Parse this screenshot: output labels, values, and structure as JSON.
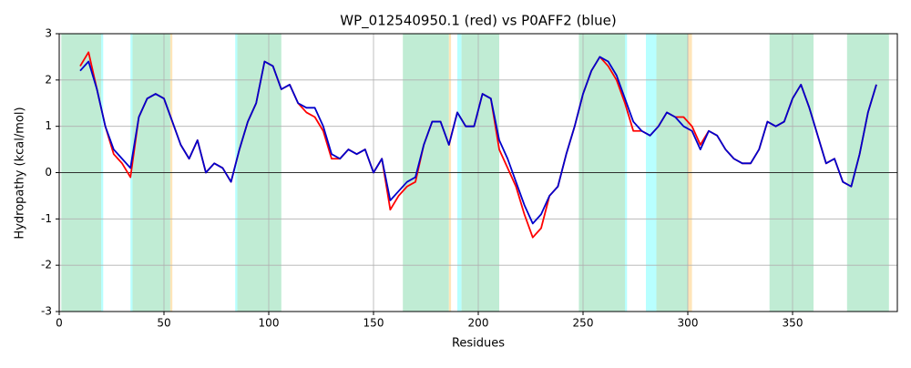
{
  "chart_data": {
    "type": "line",
    "title": "WP_012540950.1 (red) vs P0AFF2 (blue)",
    "x_label": "Residues",
    "y_label": "Hydropathy (kcal/mol)",
    "xlim": [
      0,
      400
    ],
    "ylim": [
      -3,
      3
    ],
    "xticks": [
      0,
      50,
      100,
      150,
      200,
      250,
      300,
      350
    ],
    "yticks": [
      -3,
      -2,
      -1,
      0,
      1,
      2,
      3
    ],
    "grid": true,
    "hlines": [
      0
    ],
    "regions": [
      {
        "start": 1,
        "end": 20,
        "color": "#c0ecd4"
      },
      {
        "start": 20,
        "end": 21,
        "color": "#b8ffff"
      },
      {
        "start": 34,
        "end": 35,
        "color": "#b8ffff"
      },
      {
        "start": 35,
        "end": 53,
        "color": "#c0ecd4"
      },
      {
        "start": 53,
        "end": 54,
        "color": "#ffe5b9"
      },
      {
        "start": 84,
        "end": 85,
        "color": "#b8ffff"
      },
      {
        "start": 85,
        "end": 106,
        "color": "#c0ecd4"
      },
      {
        "start": 164,
        "end": 186,
        "color": "#c0ecd4"
      },
      {
        "start": 186,
        "end": 187,
        "color": "#ffe5b9"
      },
      {
        "start": 190,
        "end": 192,
        "color": "#b8ffff"
      },
      {
        "start": 192,
        "end": 210,
        "color": "#c0ecd4"
      },
      {
        "start": 248,
        "end": 270,
        "color": "#c0ecd4"
      },
      {
        "start": 270,
        "end": 271,
        "color": "#b8ffff"
      },
      {
        "start": 280,
        "end": 285,
        "color": "#b8ffff"
      },
      {
        "start": 285,
        "end": 300,
        "color": "#c0ecd4"
      },
      {
        "start": 300,
        "end": 302,
        "color": "#ffe5b9"
      },
      {
        "start": 339,
        "end": 360,
        "color": "#c0ecd4"
      },
      {
        "start": 376,
        "end": 396,
        "color": "#c0ecd4"
      }
    ],
    "x": [
      10,
      14,
      18,
      22,
      26,
      30,
      34,
      38,
      42,
      46,
      50,
      54,
      58,
      62,
      66,
      70,
      74,
      78,
      82,
      86,
      90,
      94,
      98,
      102,
      106,
      110,
      114,
      118,
      122,
      126,
      130,
      134,
      138,
      142,
      146,
      150,
      154,
      158,
      162,
      166,
      170,
      174,
      178,
      182,
      186,
      190,
      194,
      198,
      202,
      206,
      210,
      214,
      218,
      222,
      226,
      230,
      234,
      238,
      242,
      246,
      250,
      254,
      258,
      262,
      266,
      270,
      274,
      278,
      282,
      286,
      290,
      294,
      298,
      302,
      306,
      310,
      314,
      318,
      322,
      326,
      330,
      334,
      338,
      342,
      346,
      350,
      354,
      358,
      362,
      366,
      370,
      374,
      378,
      382,
      386,
      390
    ],
    "series": [
      {
        "color": "#ff0000",
        "values": [
          2.3,
          2.6,
          1.8,
          1.0,
          0.4,
          0.2,
          -0.1,
          1.2,
          1.6,
          1.7,
          1.6,
          1.1,
          0.6,
          0.3,
          0.7,
          0.0,
          0.2,
          0.1,
          -0.2,
          0.5,
          1.1,
          1.5,
          2.4,
          2.3,
          1.8,
          1.9,
          1.5,
          1.3,
          1.2,
          0.9,
          0.3,
          0.3,
          0.5,
          0.4,
          0.5,
          0.0,
          0.3,
          -0.8,
          -0.5,
          -0.3,
          -0.2,
          0.6,
          1.1,
          1.1,
          0.6,
          1.3,
          1.0,
          1.0,
          1.7,
          1.6,
          0.5,
          0.1,
          -0.3,
          -0.9,
          -1.4,
          -1.2,
          -0.5,
          -0.3,
          0.4,
          1.0,
          1.7,
          2.2,
          2.5,
          2.3,
          2.0,
          1.5,
          0.9,
          0.9,
          0.8,
          1.0,
          1.3,
          1.2,
          1.2,
          1.0,
          0.6,
          0.9,
          0.8,
          0.5,
          0.3,
          0.2,
          0.2,
          0.5,
          1.1,
          1.0,
          1.1,
          1.6,
          1.9,
          1.4,
          0.8,
          0.2,
          0.3,
          -0.2,
          -0.3,
          0.4,
          1.3,
          1.9
        ]
      },
      {
        "color": "#0000cc",
        "values": [
          2.2,
          2.4,
          1.8,
          1.0,
          0.5,
          0.3,
          0.1,
          1.2,
          1.6,
          1.7,
          1.6,
          1.1,
          0.6,
          0.3,
          0.7,
          0.0,
          0.2,
          0.1,
          -0.2,
          0.5,
          1.1,
          1.5,
          2.4,
          2.3,
          1.8,
          1.9,
          1.5,
          1.4,
          1.4,
          1.0,
          0.4,
          0.3,
          0.5,
          0.4,
          0.5,
          0.0,
          0.3,
          -0.6,
          -0.4,
          -0.2,
          -0.1,
          0.6,
          1.1,
          1.1,
          0.6,
          1.3,
          1.0,
          1.0,
          1.7,
          1.6,
          0.7,
          0.3,
          -0.2,
          -0.7,
          -1.1,
          -0.9,
          -0.5,
          -0.3,
          0.4,
          1.0,
          1.7,
          2.2,
          2.5,
          2.4,
          2.1,
          1.6,
          1.1,
          0.9,
          0.8,
          1.0,
          1.3,
          1.2,
          1.0,
          0.9,
          0.5,
          0.9,
          0.8,
          0.5,
          0.3,
          0.2,
          0.2,
          0.5,
          1.1,
          1.0,
          1.1,
          1.6,
          1.9,
          1.4,
          0.8,
          0.2,
          0.3,
          -0.2,
          -0.3,
          0.4,
          1.3,
          1.9
        ]
      }
    ]
  }
}
